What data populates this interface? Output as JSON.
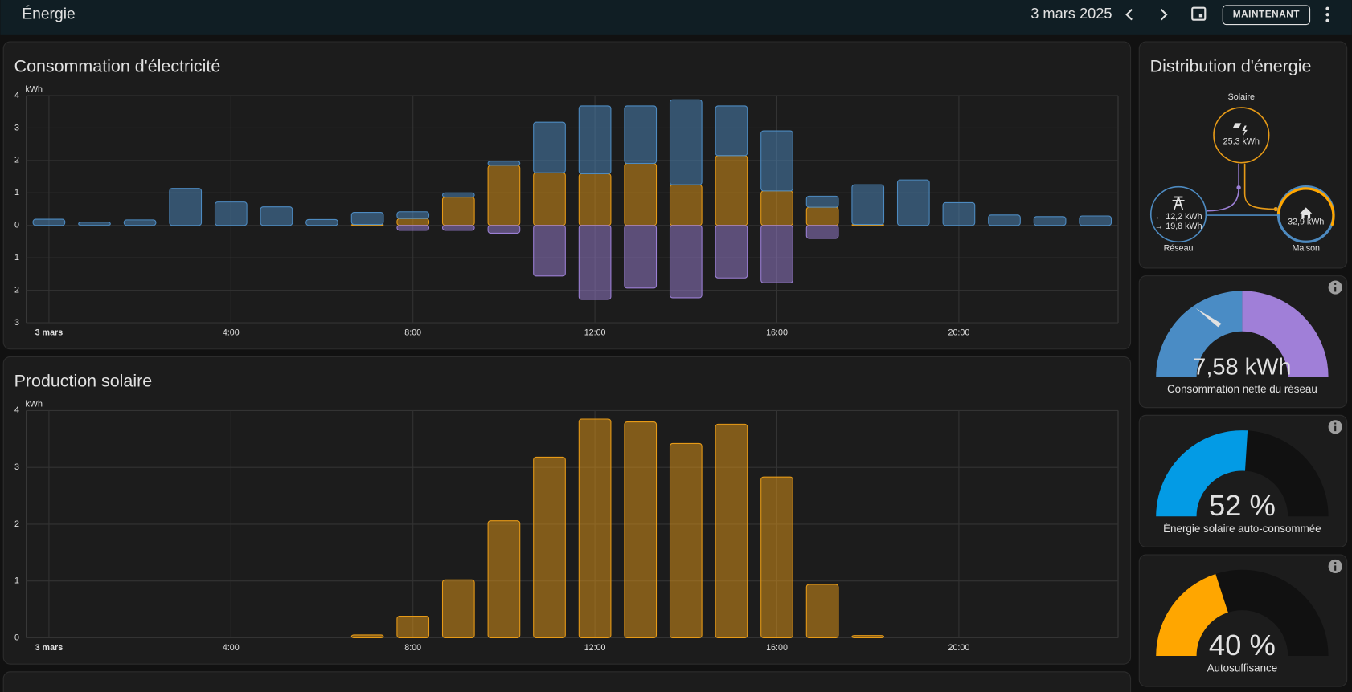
{
  "header": {
    "title": "Énergie",
    "date": "3 mars 2025",
    "now_button": "MAINTENANT"
  },
  "chart_data": [
    {
      "type": "bar",
      "stacked": true,
      "title": "Consommation d'électricité",
      "y_label": "kWh",
      "categories": [
        "3 mars",
        null,
        null,
        null,
        "4:00",
        null,
        null,
        null,
        "8:00",
        null,
        null,
        null,
        "12:00",
        null,
        null,
        null,
        "16:00",
        null,
        null,
        null,
        "20:00",
        null,
        null,
        null
      ],
      "series": [
        {
          "color": "#e69a17",
          "values": [
            0,
            0,
            0,
            0,
            0,
            0,
            0,
            0.03,
            0.21,
            0.87,
            1.85,
            1.62,
            1.59,
            1.91,
            1.25,
            2.15,
            1.06,
            0.56,
            0.03,
            0,
            0,
            0,
            0,
            0
          ]
        },
        {
          "color": "#4d8ac0",
          "values": [
            0.19,
            0.1,
            0.17,
            1.14,
            0.72,
            0.57,
            0.18,
            0.37,
            0.21,
            0.13,
            0.13,
            1.56,
            2.09,
            1.77,
            2.62,
            1.53,
            1.85,
            0.34,
            1.22,
            1.4,
            0.7,
            0.32,
            0.27,
            0.29
          ]
        },
        {
          "color": "#9b7fd4",
          "values": [
            0,
            0,
            0,
            0,
            0,
            0,
            0,
            0,
            -0.15,
            -0.15,
            -0.24,
            -1.56,
            -2.28,
            -1.93,
            -2.23,
            -1.62,
            -1.77,
            -0.4,
            0,
            0,
            0,
            0,
            0,
            0
          ]
        }
      ],
      "ylim": [
        -3,
        4
      ],
      "yticks": [
        4,
        3,
        2,
        1,
        0,
        {
          "value": -1,
          "label": "1"
        },
        {
          "value": -2,
          "label": "2"
        },
        {
          "value": -3,
          "label": "3"
        }
      ],
      "grid": true
    },
    {
      "type": "bar",
      "title": "Production solaire",
      "y_label": "kWh",
      "categories": [
        "3 mars",
        null,
        null,
        null,
        "4:00",
        null,
        null,
        null,
        "8:00",
        null,
        null,
        null,
        "12:00",
        null,
        null,
        null,
        "16:00",
        null,
        null,
        null,
        "20:00",
        null,
        null,
        null
      ],
      "series": [
        {
          "color": "#e69a17",
          "values": [
            0,
            0,
            0,
            0,
            0,
            0,
            0,
            0.05,
            0.38,
            1.02,
            2.06,
            3.18,
            3.85,
            3.8,
            3.42,
            3.76,
            2.83,
            0.94,
            0.04,
            0,
            0,
            0,
            0,
            0
          ]
        }
      ],
      "ylim": [
        0,
        4
      ],
      "yticks": [
        0,
        1,
        2,
        3,
        4
      ],
      "grid": true
    }
  ],
  "distribution": {
    "title": "Distribution d'énergie",
    "solar": {
      "label": "Solaire",
      "value": "25,3 kWh"
    },
    "grid": {
      "label": "Réseau",
      "from": "← 12,2 kWh",
      "to": "→ 19,8 kWh"
    },
    "home": {
      "label": "Maison",
      "value": "32,9 kWh"
    }
  },
  "gauges": [
    {
      "value_label": "7,58 kWh",
      "label": "Consommation nette du réseau",
      "colors": [
        "#4a8cc5",
        "#a07fd8"
      ]
    },
    {
      "value": 52,
      "value_label": "52 %",
      "min": 0,
      "max": 100,
      "label": "Énergie solaire auto-consommée",
      "color": "#039be5"
    },
    {
      "value": 40,
      "value_label": "40 %",
      "min": 0,
      "max": 100,
      "label": "Autosuffisance",
      "color": "#ffa600"
    }
  ]
}
